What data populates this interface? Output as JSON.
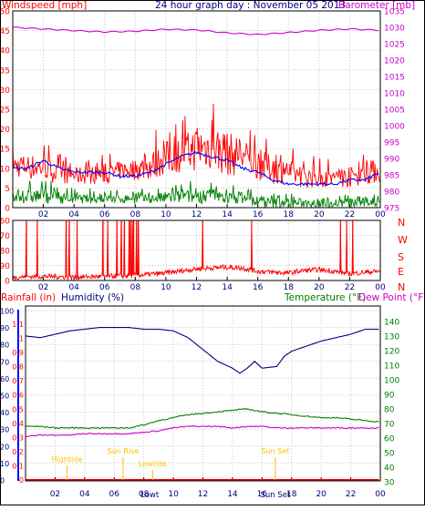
{
  "header": {
    "windspeed_label": "Windspeed [mph]",
    "title": "24 hour graph day : November 05 2013",
    "barometer_label": "Barometer [mb]"
  },
  "labels": {
    "rainfall": "Rainfall (in)",
    "humidity": "Humidity (%)",
    "temperature": "Temperature (°F)",
    "dewpoint": "Dew Point (°F)"
  },
  "colors": {
    "frame": "#000000",
    "grid": "#c8c8c8",
    "wind_speed": "#ff0000",
    "wind_avg": "#0000ff",
    "wind_gust_low": "#008000",
    "barometer": "#cc00cc",
    "direction": "#ff0000",
    "rain_axis": "#ff0000",
    "humidity": "#000080",
    "temperature": "#008000",
    "dewpoint": "#cc00cc",
    "sun_moon": "#ffc000"
  },
  "chart_data": [
    {
      "type": "line",
      "panel": "wind_barometer",
      "x_ticks": [
        "02",
        "04",
        "06",
        "08",
        "10",
        "12",
        "14",
        "16",
        "18",
        "20",
        "22",
        "00"
      ],
      "x_hours": [
        2,
        4,
        6,
        8,
        10,
        12,
        14,
        16,
        18,
        20,
        22,
        24
      ],
      "left_axis": {
        "ticks": [
          "0",
          "5",
          "10",
          "15",
          "20",
          "25",
          "30",
          "35",
          "40",
          "45",
          "50"
        ],
        "ylim": [
          0,
          50
        ]
      },
      "right_axis": {
        "ticks": [
          "975",
          "980",
          "985",
          "990",
          "995",
          "1000",
          "1005",
          "1010",
          "1015",
          "1020",
          "1025",
          "1030",
          "1035"
        ],
        "ylim": [
          975,
          1035
        ]
      },
      "series": [
        {
          "name": "Windspeed [mph]",
          "axis": "left",
          "style": "noisy",
          "x": [
            0,
            1,
            2,
            3,
            4,
            5,
            6,
            7,
            8,
            9,
            10,
            11,
            12,
            13,
            14,
            15,
            16,
            17,
            18,
            19,
            20,
            21,
            22,
            23,
            24
          ],
          "low": [
            8,
            7,
            7,
            6,
            6,
            6,
            6,
            7,
            7,
            7,
            8,
            9,
            9,
            9,
            8,
            8,
            7,
            6,
            6,
            5,
            5,
            5,
            5,
            6,
            6
          ],
          "high": [
            17,
            18,
            18,
            14,
            13,
            14,
            14,
            15,
            16,
            19,
            23,
            24,
            29,
            30,
            27,
            24,
            20,
            18,
            16,
            14,
            13,
            13,
            14,
            15,
            17
          ]
        },
        {
          "name": "Average wind",
          "axis": "left",
          "style": "smooth",
          "x": [
            0,
            1,
            2,
            3,
            4,
            5,
            6,
            7,
            8,
            9,
            10,
            11,
            12,
            13,
            14,
            15,
            16,
            17,
            18,
            19,
            20,
            21,
            22,
            23,
            24
          ],
          "values": [
            10,
            10,
            12,
            10,
            9,
            9,
            9,
            8,
            8,
            9,
            11,
            13,
            14,
            13,
            12,
            10,
            9,
            7,
            6,
            6,
            6,
            6,
            7,
            7,
            9
          ]
        },
        {
          "name": "Wind low band",
          "axis": "left",
          "style": "noisy",
          "x": [
            0,
            1,
            2,
            3,
            4,
            5,
            6,
            7,
            8,
            9,
            10,
            11,
            12,
            13,
            14,
            15,
            16,
            17,
            18,
            19,
            20,
            21,
            22,
            23,
            24
          ],
          "low": [
            1,
            1,
            1,
            1,
            1,
            1,
            1,
            1,
            1,
            1,
            1,
            1,
            1,
            1,
            1,
            1,
            0,
            0,
            0,
            0,
            0,
            0,
            0,
            0,
            0
          ],
          "high": [
            6,
            7,
            8,
            6,
            5,
            5,
            5,
            5,
            5,
            5,
            6,
            7,
            7,
            7,
            6,
            6,
            5,
            4,
            4,
            4,
            4,
            4,
            4,
            4,
            5
          ]
        },
        {
          "name": "Barometer [mb]",
          "axis": "right",
          "style": "wavy",
          "x": [
            0,
            2,
            4,
            6,
            8,
            10,
            12,
            14,
            16,
            18,
            20,
            22,
            24
          ],
          "values": [
            1030,
            1029.5,
            1029,
            1028.6,
            1028.8,
            1029.4,
            1029.2,
            1028.3,
            1027.8,
            1028.4,
            1029.1,
            1029.5,
            1029.1
          ]
        }
      ]
    },
    {
      "type": "scatter",
      "panel": "wind_direction",
      "x_ticks": [
        "02",
        "04",
        "06",
        "08",
        "10",
        "12",
        "14",
        "16",
        "18",
        "20",
        "22",
        "00"
      ],
      "left_axis": {
        "ticks": [
          "0",
          "90",
          "180",
          "270",
          "360"
        ],
        "ylim": [
          0,
          360
        ]
      },
      "right_axis": {
        "ticks": [
          "N",
          "W",
          "S",
          "E",
          "N"
        ]
      },
      "series": [
        {
          "name": "Wind direction",
          "baseline": [
            [
              0,
              20
            ],
            [
              2,
              25
            ],
            [
              4,
              20
            ],
            [
              6,
              25
            ],
            [
              8,
              30
            ],
            [
              10,
              45
            ],
            [
              12,
              70
            ],
            [
              14,
              80
            ],
            [
              15,
              75
            ],
            [
              16,
              55
            ],
            [
              17,
              50
            ],
            [
              18,
              45
            ],
            [
              19,
              60
            ],
            [
              20,
              65
            ],
            [
              21,
              55
            ],
            [
              22,
              40
            ],
            [
              23,
              50
            ],
            [
              24,
              55
            ]
          ],
          "spikes_hours": [
            0.9,
            1.6,
            3.5,
            3.7,
            4.2,
            5.9,
            6.2,
            6.8,
            7.1,
            7.3,
            7.6,
            7.7,
            7.8,
            7.9,
            8.1,
            8.2,
            12.4,
            15.6,
            21.4,
            21.8,
            22.2
          ]
        }
      ]
    },
    {
      "type": "line",
      "panel": "temperature_humidity",
      "x_ticks": [
        "02",
        "04",
        "06",
        "08",
        "10",
        "12",
        "14",
        "16",
        "18",
        "20",
        "22",
        "00"
      ],
      "left_axis": {
        "ticks": [
          "0",
          "10",
          "20",
          "30",
          "40",
          "50",
          "60",
          "70",
          "80",
          "90",
          "100"
        ],
        "ylim": [
          0,
          100
        ]
      },
      "rain_axis": {
        "ticks": [
          "0",
          "0.1",
          "0.2",
          "0.3",
          "0.4",
          "0.5",
          "0.6",
          "0.7",
          "0.8",
          "0.9",
          "1",
          "1.1"
        ],
        "ylim": [
          0,
          1.1
        ]
      },
      "right_axis": {
        "ticks": [
          "30",
          "40",
          "50",
          "60",
          "70",
          "80",
          "90",
          "100",
          "110",
          "120",
          "130",
          "140"
        ],
        "ylim": [
          30,
          140
        ]
      },
      "series": [
        {
          "name": "Humidity (%)",
          "axis": "left",
          "x": [
            0,
            1,
            2,
            3,
            4,
            5,
            6,
            7,
            8,
            9,
            10,
            11,
            12,
            13,
            14,
            14.5,
            15,
            15.5,
            16,
            17,
            17.5,
            18,
            19,
            20,
            21,
            22,
            23,
            24
          ],
          "values": [
            85,
            84,
            86,
            88,
            89,
            90,
            90,
            90,
            89,
            89,
            88,
            84,
            77,
            70,
            66,
            63,
            66,
            70,
            66,
            67,
            73,
            76,
            79,
            82,
            84,
            86,
            89,
            89
          ]
        },
        {
          "name": "Temperature (°F)",
          "axis": "right",
          "x": [
            0,
            1,
            2,
            3,
            4,
            5,
            6,
            7,
            8,
            9,
            10,
            11,
            12,
            13,
            14,
            15,
            16,
            17,
            18,
            19,
            20,
            21,
            22,
            23,
            24
          ],
          "values": [
            68,
            68,
            67,
            67,
            67,
            67,
            67,
            67,
            69,
            72,
            74,
            76,
            77,
            78,
            79,
            80,
            78,
            77,
            76,
            75,
            74,
            74,
            73,
            72,
            71
          ]
        },
        {
          "name": "Dew Point (°F)",
          "axis": "right",
          "x": [
            0,
            1,
            2,
            3,
            4,
            5,
            6,
            7,
            8,
            9,
            10,
            11,
            12,
            13,
            14,
            15,
            16,
            17,
            18,
            19,
            20,
            21,
            22,
            23,
            24
          ],
          "values": [
            61,
            62,
            62,
            62,
            63,
            63,
            63,
            63,
            64,
            65,
            67,
            68,
            68,
            68,
            67,
            68,
            68,
            67,
            67,
            67,
            67,
            67,
            67,
            67,
            67
          ]
        },
        {
          "name": "Rainfall (in)",
          "axis": "rain",
          "x": [
            0,
            24
          ],
          "values": [
            0,
            0
          ]
        }
      ],
      "annotations": [
        {
          "text": "Hightide",
          "hour": 2.8
        },
        {
          "text": "Sun Rise",
          "hour": 6.6
        },
        {
          "text": "Lowtide",
          "hour": 8.6
        },
        {
          "text": "Sun Set",
          "hour": 16.9
        }
      ],
      "bottom_labels": [
        {
          "text": "Lowt",
          "hour": 8.4
        },
        {
          "text": "Sun Set",
          "hour": 16.9
        }
      ]
    }
  ]
}
